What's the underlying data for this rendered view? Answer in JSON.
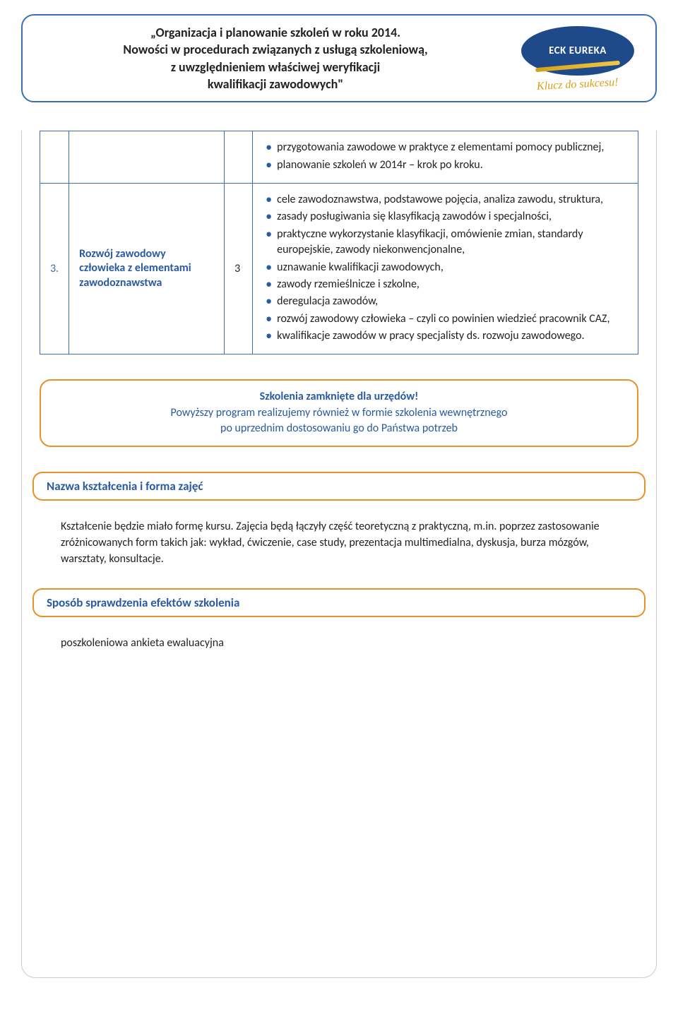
{
  "header": {
    "line1": "„Organizacja i planowanie szkoleń w roku 2014.",
    "line2": "Nowości w procedurach związanych z usługą szkoleniową,",
    "line3": "z uwzględnieniem właściwej weryfikacji",
    "line4": "kwalifikacji  zawodowych\"",
    "logo_text": "ECK EUREKA",
    "tagline": "Klucz do sukcesu!",
    "logo_bg": "#1e4a8a",
    "logo_swoosh": "#d4a017",
    "border_color": "#3b6fb5"
  },
  "table": {
    "row1": {
      "bullets": [
        "przygotowania zawodowe w praktyce z elementami pomocy publicznej,",
        "planowanie szkoleń w 2014r – krok po kroku."
      ]
    },
    "row2": {
      "num": "3.",
      "title": "Rozwój zawodowy człowieka z elementami zawodoznawstwa",
      "hours": "3",
      "bullets": [
        "cele zawodoznawstwa,  podstawowe pojęcia,   analiza zawodu, struktura,",
        "zasady posługiwania się klasyfikacją zawodów i specjalności,",
        "praktyczne wykorzystanie klasyfikacji, omówienie zmian, standardy europejskie, zawody niekonwencjonalne,",
        "uznawanie kwalifikacji zawodowych,",
        "zawody rzemieślnicze i szkolne,",
        "deregulacja zawodów,",
        "rozwój zawodowy człowieka – czyli co powinien wiedzieć pracownik CAZ,",
        "kwalifikacje zawodów w pracy specjalisty ds. rozwoju zawodowego."
      ]
    }
  },
  "info_bubble": {
    "title": "Szkolenia zamknięte dla urzędów!",
    "line1": "Powyższy program realizujemy również w formie szkolenia wewnętrznego",
    "line2": "po uprzednim dostosowaniu go do Państwa potrzeb"
  },
  "section1": {
    "label": "Nazwa kształcenia i forma zajęć",
    "body": "Kształcenie będzie miało formę kursu. Zajęcia będą łączyły część teoretyczną z praktyczną, m.in. poprzez zastosowanie zróżnicowanych form takich jak: wykład, ćwiczenie, case study, prezentacja multimedialna,  dyskusja, burza mózgów, warsztaty, konsultacje."
  },
  "section2": {
    "label": "Sposób sprawdzenia efektów szkolenia",
    "body": "poszkoleniowa ankieta ewaluacyjna"
  },
  "colors": {
    "accent_blue": "#2a5aa0",
    "border_blue": "#3b6fb5",
    "orange": "#e8902c",
    "text": "#222222"
  }
}
